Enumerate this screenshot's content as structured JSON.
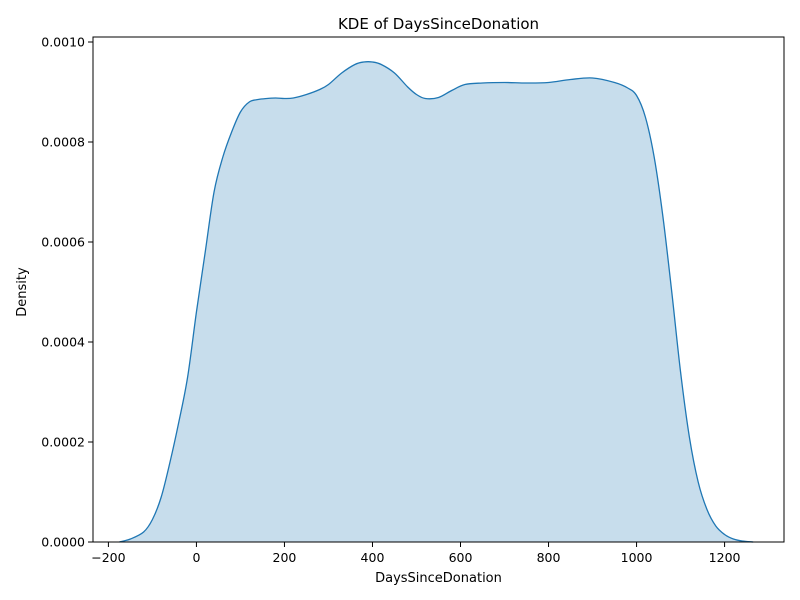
{
  "chart_data": {
    "type": "area",
    "title": "KDE of DaysSinceDonation",
    "xlabel": "DaysSinceDonation",
    "ylabel": "Density",
    "xlim": [
      -235,
      1335
    ],
    "ylim": [
      0,
      0.00101
    ],
    "x_ticks": [
      -200,
      0,
      200,
      400,
      600,
      800,
      1000,
      1200
    ],
    "x_tick_labels": [
      "−200",
      "0",
      "200",
      "400",
      "600",
      "800",
      "1000",
      "1200"
    ],
    "y_ticks": [
      0,
      0.0002,
      0.0004,
      0.0006,
      0.0008,
      0.001
    ],
    "y_tick_labels": [
      "0.0000",
      "0.0002",
      "0.0004",
      "0.0006",
      "0.0008",
      "0.0010"
    ],
    "grid": false,
    "legend": "none",
    "colors": {
      "line": "#1f77b4",
      "fill": "#1f77b4",
      "fill_opacity": 0.25
    },
    "series": [
      {
        "x": [
          -175,
          -150,
          -120,
          -100,
          -80,
          -60,
          -40,
          -20,
          0,
          20,
          40,
          60,
          80,
          100,
          120,
          140,
          160,
          180,
          200,
          220,
          250,
          280,
          300,
          330,
          360,
          380,
          400,
          420,
          450,
          480,
          500,
          520,
          550,
          580,
          610,
          650,
          700,
          750,
          800,
          850,
          900,
          950,
          980,
          1000,
          1020,
          1040,
          1060,
          1080,
          1100,
          1120,
          1140,
          1160,
          1180,
          1200,
          1220,
          1240,
          1265
        ],
        "y": [
          0,
          6e-06,
          2e-05,
          4.5e-05,
          9e-05,
          0.00016,
          0.00024,
          0.00033,
          0.00046,
          0.00058,
          0.0007,
          0.00077,
          0.00082,
          0.00086,
          0.00088,
          0.000885,
          0.000887,
          0.000888,
          0.000887,
          0.000888,
          0.000895,
          0.000905,
          0.000915,
          0.000938,
          0.000955,
          0.00096,
          0.00096,
          0.000955,
          0.000938,
          0.00091,
          0.000895,
          0.000887,
          0.000889,
          0.000903,
          0.000915,
          0.000918,
          0.000919,
          0.000918,
          0.000919,
          0.000925,
          0.000928,
          0.000919,
          0.000908,
          0.000893,
          0.00085,
          0.00077,
          0.00065,
          0.0005,
          0.00034,
          0.00021,
          0.00012,
          6.5e-05,
          3.2e-05,
          1.5e-05,
          6e-06,
          2e-06,
          0
        ]
      }
    ]
  }
}
